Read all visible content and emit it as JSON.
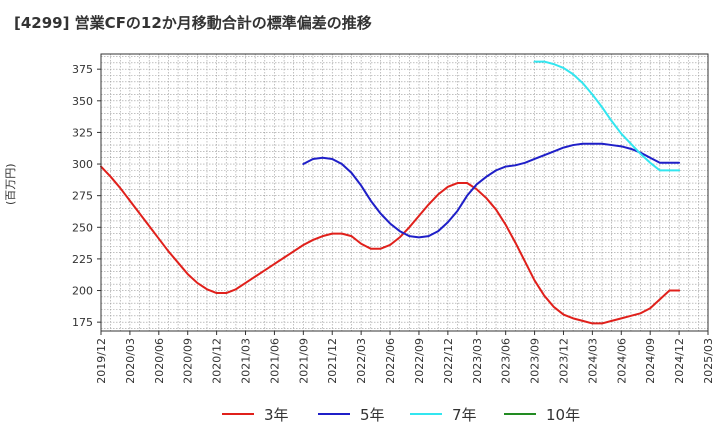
{
  "header": {
    "title": "[4299]  営業CFの12か月移動合計の標準偏差の推移"
  },
  "chart_data": {
    "type": "line",
    "title": "[4299]  営業CFの12か月移動合計の標準偏差の推移",
    "xlabel": "",
    "ylabel": "(百万円)",
    "xlim": [
      "2019/12",
      "2025/03"
    ],
    "ylim": [
      168,
      387
    ],
    "yticks": [
      175,
      200,
      225,
      250,
      275,
      300,
      325,
      350,
      375
    ],
    "xticks": [
      "2019/12",
      "2020/03",
      "2020/06",
      "2020/09",
      "2020/12",
      "2021/03",
      "2021/06",
      "2021/09",
      "2021/12",
      "2022/03",
      "2022/06",
      "2022/09",
      "2022/12",
      "2023/03",
      "2023/06",
      "2023/09",
      "2023/12",
      "2024/03",
      "2024/06",
      "2024/09",
      "2024/12",
      "2025/03"
    ],
    "grid": true,
    "legend_position": "bottom",
    "series": [
      {
        "name": "3年",
        "color": "#e0201b",
        "x": [
          "2019/12",
          "2020/01",
          "2020/02",
          "2020/03",
          "2020/04",
          "2020/05",
          "2020/06",
          "2020/07",
          "2020/08",
          "2020/09",
          "2020/10",
          "2020/11",
          "2020/12",
          "2021/01",
          "2021/02",
          "2021/03",
          "2021/04",
          "2021/05",
          "2021/06",
          "2021/07",
          "2021/08",
          "2021/09",
          "2021/10",
          "2021/11",
          "2021/12",
          "2022/01",
          "2022/02",
          "2022/03",
          "2022/04",
          "2022/05",
          "2022/06",
          "2022/07",
          "2022/08",
          "2022/09",
          "2022/10",
          "2022/11",
          "2022/12",
          "2023/01",
          "2023/02",
          "2023/03",
          "2023/04",
          "2023/05",
          "2023/06",
          "2023/07",
          "2023/08",
          "2023/09",
          "2023/10",
          "2023/11",
          "2023/12",
          "2024/01",
          "2024/02",
          "2024/03",
          "2024/04",
          "2024/05",
          "2024/06",
          "2024/07",
          "2024/08",
          "2024/09",
          "2024/10",
          "2024/11",
          "2024/12"
        ],
        "values": [
          298,
          290,
          281,
          271,
          261,
          251,
          241,
          231,
          222,
          213,
          206,
          201,
          198,
          198,
          201,
          206,
          211,
          216,
          221,
          226,
          231,
          236,
          240,
          243,
          245,
          245,
          243,
          237,
          233,
          233,
          236,
          242,
          250,
          259,
          268,
          276,
          282,
          285,
          285,
          280,
          273,
          264,
          252,
          238,
          223,
          208,
          196,
          187,
          181,
          178,
          176,
          174,
          174,
          176,
          178,
          180,
          182,
          186,
          193,
          200,
          200
        ]
      },
      {
        "name": "5年",
        "color": "#1f1fc8",
        "x": [
          "2021/09",
          "2021/10",
          "2021/11",
          "2021/12",
          "2022/01",
          "2022/02",
          "2022/03",
          "2022/04",
          "2022/05",
          "2022/06",
          "2022/07",
          "2022/08",
          "2022/09",
          "2022/10",
          "2022/11",
          "2022/12",
          "2023/01",
          "2023/02",
          "2023/03",
          "2023/04",
          "2023/05",
          "2023/06",
          "2023/07",
          "2023/08",
          "2023/09",
          "2023/10",
          "2023/11",
          "2023/12",
          "2024/01",
          "2024/02",
          "2024/03",
          "2024/04",
          "2024/05",
          "2024/06",
          "2024/07",
          "2024/08",
          "2024/09",
          "2024/10",
          "2024/11",
          "2024/12"
        ],
        "values": [
          300,
          304,
          305,
          304,
          300,
          293,
          283,
          271,
          261,
          253,
          247,
          243,
          242,
          243,
          247,
          254,
          263,
          275,
          284,
          290,
          295,
          298,
          299,
          301,
          304,
          307,
          310,
          313,
          315,
          316,
          316,
          316,
          315,
          314,
          312,
          309,
          305,
          301,
          301,
          301
        ]
      },
      {
        "name": "7年",
        "color": "#33e6f0",
        "x": [
          "2023/09",
          "2023/10",
          "2023/11",
          "2023/12",
          "2024/01",
          "2024/02",
          "2024/03",
          "2024/04",
          "2024/05",
          "2024/06",
          "2024/07",
          "2024/08",
          "2024/09",
          "2024/10",
          "2024/11",
          "2024/12"
        ],
        "values": [
          381,
          381,
          379,
          376,
          371,
          364,
          355,
          345,
          334,
          324,
          316,
          308,
          301,
          295,
          295,
          295
        ]
      },
      {
        "name": "10年",
        "color": "#228b22",
        "x": [],
        "values": []
      }
    ]
  }
}
